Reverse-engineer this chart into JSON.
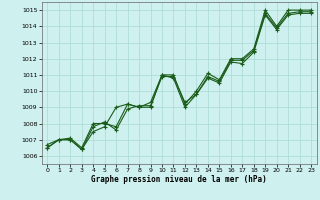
{
  "xlabel": "Graphe pression niveau de la mer (hPa)",
  "bg_color": "#cef0ee",
  "grid_color": "#b0ddd8",
  "line_color": "#1a5c1a",
  "xlim_min": -0.5,
  "xlim_max": 23.5,
  "ylim_min": 1005.5,
  "ylim_max": 1015.5,
  "yticks": [
    1006,
    1007,
    1008,
    1009,
    1010,
    1011,
    1012,
    1013,
    1014,
    1015
  ],
  "xticks": [
    0,
    1,
    2,
    3,
    4,
    5,
    6,
    7,
    8,
    9,
    10,
    11,
    12,
    13,
    14,
    15,
    16,
    17,
    18,
    19,
    20,
    21,
    22,
    23
  ],
  "line1_x": [
    0,
    1,
    2,
    3,
    4,
    5,
    6,
    7,
    8,
    9,
    10,
    11,
    12,
    13,
    14,
    15,
    16,
    17,
    18,
    19,
    20,
    21,
    22,
    23
  ],
  "line1_y": [
    1006.7,
    1007.0,
    1007.1,
    1006.5,
    1008.0,
    1008.0,
    1007.8,
    1009.2,
    1009.0,
    1009.3,
    1011.0,
    1011.0,
    1009.2,
    1010.0,
    1011.1,
    1010.7,
    1012.0,
    1012.0,
    1012.6,
    1015.0,
    1014.0,
    1015.0,
    1015.0,
    1015.0
  ],
  "line2_x": [
    0,
    1,
    2,
    3,
    4,
    5,
    6,
    7,
    8,
    9,
    10,
    11,
    12,
    13,
    14,
    15,
    16,
    17,
    18,
    19,
    20,
    21,
    22,
    23
  ],
  "line2_y": [
    1006.5,
    1007.0,
    1007.0,
    1006.4,
    1007.8,
    1008.1,
    1007.6,
    1008.9,
    1009.1,
    1009.1,
    1010.9,
    1010.9,
    1009.3,
    1009.8,
    1010.9,
    1010.6,
    1011.9,
    1011.9,
    1012.5,
    1014.8,
    1013.9,
    1014.8,
    1014.9,
    1014.9
  ],
  "line3_x": [
    0,
    1,
    2,
    3,
    4,
    5,
    6,
    7,
    8,
    9,
    10,
    11,
    12,
    13,
    14,
    15,
    16,
    17,
    18,
    19,
    20,
    21,
    22,
    23
  ],
  "line3_y": [
    1006.5,
    1007.0,
    1007.0,
    1006.4,
    1007.5,
    1007.8,
    1009.0,
    1009.2,
    1009.0,
    1009.0,
    1011.0,
    1010.8,
    1009.0,
    1009.8,
    1010.8,
    1010.5,
    1011.8,
    1011.7,
    1012.4,
    1014.7,
    1013.8,
    1014.7,
    1014.8,
    1014.8
  ],
  "xlabel_fontsize": 5.5,
  "tick_labelsize": 4.5,
  "linewidth": 0.8,
  "markersize": 2.5
}
